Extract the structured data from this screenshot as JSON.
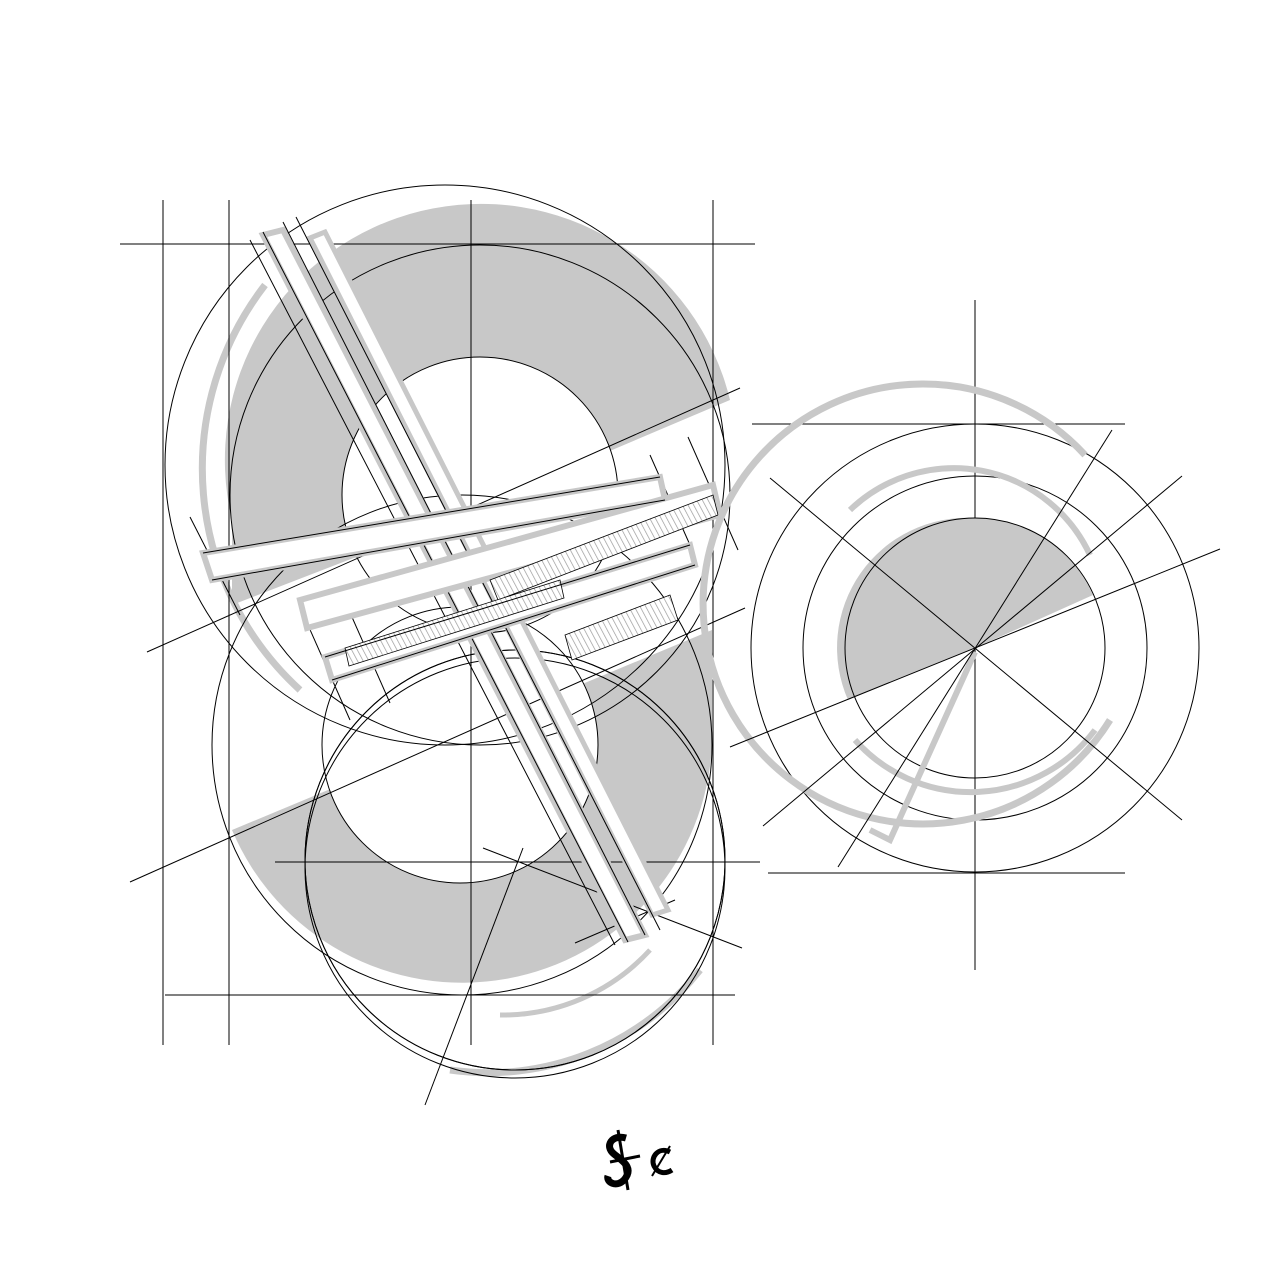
{
  "figure": {
    "background": "#ffffff",
    "stroke_color": "#000000",
    "shade_color": "#c8c8c8",
    "subjects": [
      "dollar-sign-construction",
      "cent-sign-construction"
    ]
  },
  "logo": {
    "icon": "dollar-cent-logo-icon",
    "text": "$c"
  }
}
